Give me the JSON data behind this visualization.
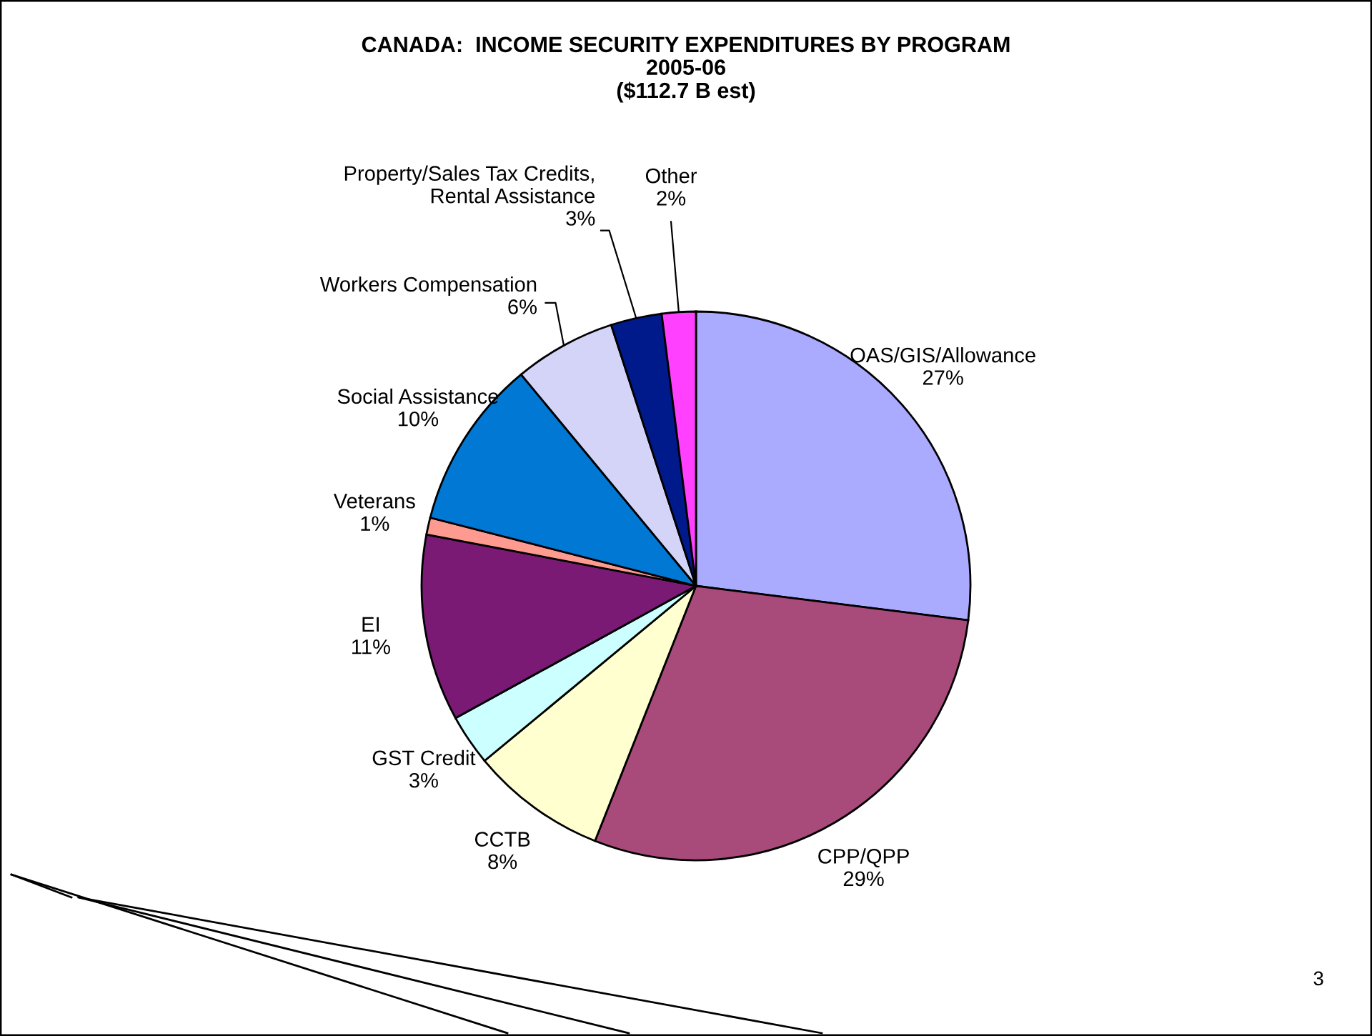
{
  "chart_data": {
    "type": "pie",
    "title": "CANADA:  INCOME SECURITY EXPENDITURES BY PROGRAM\n2005-06\n($112.7 B est)",
    "categories": [
      "OAS/GIS/Allowance",
      "CPP/QPP",
      "CCTB",
      "GST Credit",
      "EI",
      "Veterans",
      "Social Assistance",
      "Workers Compensation",
      "Property/Sales Tax Credits,\nRental Assistance",
      "Other"
    ],
    "values": [
      27,
      29,
      8,
      3,
      11,
      1,
      10,
      6,
      3,
      2
    ],
    "colors": [
      "#aaaaff",
      "#a84a7a",
      "#ffffd0",
      "#ccffff",
      "#7a1a74",
      "#ff9a90",
      "#0078d4",
      "#d4d4f8",
      "#001a8c",
      "#ff40ff"
    ],
    "value_labels": [
      "27%",
      "29%",
      "8%",
      "3%",
      "11%",
      "1%",
      "10%",
      "6%",
      "3%",
      "2%"
    ],
    "annotations": [
      "3"
    ]
  }
}
